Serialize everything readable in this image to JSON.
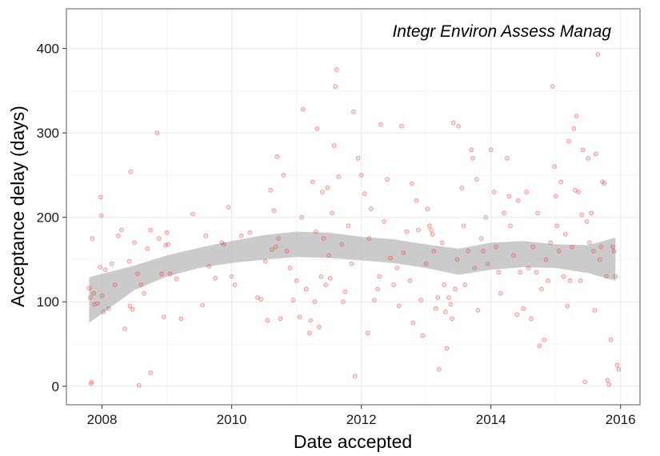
{
  "chart_data": {
    "type": "scatter",
    "title": "Integr Environ Assess Manag",
    "xlabel": "Date accepted",
    "ylabel": "Acceptance delay (days)",
    "xlim": [
      2007.45,
      2016.3
    ],
    "ylim": [
      -22,
      447
    ],
    "x_ticks": [
      2008,
      2010,
      2012,
      2014,
      2016
    ],
    "x_tick_labels": [
      "2008",
      "2010",
      "2012",
      "2014",
      "2016"
    ],
    "y_ticks": [
      0,
      100,
      200,
      300,
      400
    ],
    "y_tick_labels": [
      "0",
      "100",
      "200",
      "300",
      "400"
    ],
    "grid": true,
    "point_color": "#e8473f",
    "band_color": "#bdbdbd",
    "points": [
      [
        2007.8,
        116
      ],
      [
        2007.82,
        105
      ],
      [
        2007.83,
        3
      ],
      [
        2007.84,
        5
      ],
      [
        2007.85,
        175
      ],
      [
        2007.87,
        110
      ],
      [
        2007.88,
        97
      ],
      [
        2007.93,
        98
      ],
      [
        2007.97,
        141
      ],
      [
        2007.98,
        224
      ],
      [
        2007.99,
        202
      ],
      [
        2008.0,
        107
      ],
      [
        2008.02,
        88
      ],
      [
        2008.05,
        138
      ],
      [
        2008.1,
        92
      ],
      [
        2008.15,
        145
      ],
      [
        2008.2,
        120
      ],
      [
        2008.25,
        178
      ],
      [
        2008.3,
        185
      ],
      [
        2008.35,
        68
      ],
      [
        2008.42,
        148
      ],
      [
        2008.43,
        95
      ],
      [
        2008.44,
        254
      ],
      [
        2008.47,
        91
      ],
      [
        2008.5,
        170
      ],
      [
        2008.55,
        133
      ],
      [
        2008.57,
        1
      ],
      [
        2008.6,
        120
      ],
      [
        2008.65,
        110
      ],
      [
        2008.7,
        163
      ],
      [
        2008.75,
        185
      ],
      [
        2008.75,
        16
      ],
      [
        2008.85,
        300
      ],
      [
        2008.88,
        175
      ],
      [
        2008.92,
        133
      ],
      [
        2008.95,
        82
      ],
      [
        2008.98,
        167
      ],
      [
        2009.0,
        182
      ],
      [
        2009.02,
        168
      ],
      [
        2009.05,
        133
      ],
      [
        2009.15,
        127
      ],
      [
        2009.22,
        80
      ],
      [
        2009.4,
        204
      ],
      [
        2009.55,
        96
      ],
      [
        2009.6,
        178
      ],
      [
        2009.65,
        142
      ],
      [
        2009.75,
        128
      ],
      [
        2009.85,
        170
      ],
      [
        2009.88,
        168
      ],
      [
        2009.95,
        212
      ],
      [
        2010.0,
        130
      ],
      [
        2010.05,
        120
      ],
      [
        2010.15,
        178
      ],
      [
        2010.28,
        182
      ],
      [
        2010.4,
        105
      ],
      [
        2010.45,
        103
      ],
      [
        2010.52,
        148
      ],
      [
        2010.55,
        78
      ],
      [
        2010.6,
        232
      ],
      [
        2010.62,
        162
      ],
      [
        2010.65,
        208
      ],
      [
        2010.68,
        165
      ],
      [
        2010.7,
        272
      ],
      [
        2010.72,
        175
      ],
      [
        2010.75,
        80
      ],
      [
        2010.8,
        250
      ],
      [
        2010.85,
        160
      ],
      [
        2010.9,
        140
      ],
      [
        2010.95,
        102
      ],
      [
        2011.0,
        125
      ],
      [
        2011.05,
        82
      ],
      [
        2011.08,
        200
      ],
      [
        2011.1,
        328
      ],
      [
        2011.15,
        115
      ],
      [
        2011.2,
        63
      ],
      [
        2011.22,
        78
      ],
      [
        2011.25,
        242
      ],
      [
        2011.28,
        100
      ],
      [
        2011.3,
        183
      ],
      [
        2011.32,
        305
      ],
      [
        2011.35,
        70
      ],
      [
        2011.38,
        130
      ],
      [
        2011.4,
        230
      ],
      [
        2011.42,
        175
      ],
      [
        2011.45,
        120
      ],
      [
        2011.48,
        235
      ],
      [
        2011.5,
        155
      ],
      [
        2011.52,
        128
      ],
      [
        2011.55,
        205
      ],
      [
        2011.58,
        285
      ],
      [
        2011.6,
        355
      ],
      [
        2011.62,
        375
      ],
      [
        2011.65,
        248
      ],
      [
        2011.7,
        168
      ],
      [
        2011.72,
        100
      ],
      [
        2011.75,
        112
      ],
      [
        2011.8,
        190
      ],
      [
        2011.85,
        145
      ],
      [
        2011.88,
        325
      ],
      [
        2011.9,
        12
      ],
      [
        2011.95,
        270
      ],
      [
        2012.0,
        250
      ],
      [
        2012.05,
        228
      ],
      [
        2012.1,
        63
      ],
      [
        2012.12,
        175
      ],
      [
        2012.15,
        210
      ],
      [
        2012.2,
        102
      ],
      [
        2012.25,
        115
      ],
      [
        2012.28,
        130
      ],
      [
        2012.3,
        310
      ],
      [
        2012.35,
        195
      ],
      [
        2012.4,
        245
      ],
      [
        2012.45,
        152
      ],
      [
        2012.5,
        120
      ],
      [
        2012.55,
        140
      ],
      [
        2012.58,
        95
      ],
      [
        2012.62,
        308
      ],
      [
        2012.65,
        158
      ],
      [
        2012.7,
        183
      ],
      [
        2012.75,
        125
      ],
      [
        2012.78,
        240
      ],
      [
        2012.8,
        75
      ],
      [
        2012.85,
        220
      ],
      [
        2012.88,
        185
      ],
      [
        2012.92,
        102
      ],
      [
        2012.95,
        60
      ],
      [
        2013.0,
        145
      ],
      [
        2013.02,
        210
      ],
      [
        2013.05,
        190
      ],
      [
        2013.08,
        185
      ],
      [
        2013.1,
        180
      ],
      [
        2013.12,
        160
      ],
      [
        2013.15,
        92
      ],
      [
        2013.18,
        105
      ],
      [
        2013.2,
        20
      ],
      [
        2013.25,
        170
      ],
      [
        2013.28,
        120
      ],
      [
        2013.3,
        88
      ],
      [
        2013.32,
        45
      ],
      [
        2013.35,
        105
      ],
      [
        2013.38,
        97
      ],
      [
        2013.4,
        80
      ],
      [
        2013.42,
        312
      ],
      [
        2013.45,
        115
      ],
      [
        2013.48,
        150
      ],
      [
        2013.5,
        308
      ],
      [
        2013.55,
        235
      ],
      [
        2013.58,
        190
      ],
      [
        2013.6,
        120
      ],
      [
        2013.65,
        160
      ],
      [
        2013.7,
        280
      ],
      [
        2013.72,
        270
      ],
      [
        2013.75,
        140
      ],
      [
        2013.78,
        245
      ],
      [
        2013.8,
        90
      ],
      [
        2013.85,
        175
      ],
      [
        2013.88,
        160
      ],
      [
        2013.92,
        200
      ],
      [
        2013.95,
        145
      ],
      [
        2014.0,
        280
      ],
      [
        2014.05,
        230
      ],
      [
        2014.08,
        165
      ],
      [
        2014.12,
        135
      ],
      [
        2014.15,
        110
      ],
      [
        2014.2,
        205
      ],
      [
        2014.25,
        270
      ],
      [
        2014.28,
        225
      ],
      [
        2014.3,
        190
      ],
      [
        2014.35,
        155
      ],
      [
        2014.4,
        85
      ],
      [
        2014.42,
        220
      ],
      [
        2014.45,
        135
      ],
      [
        2014.5,
        92
      ],
      [
        2014.55,
        230
      ],
      [
        2014.58,
        140
      ],
      [
        2014.62,
        80
      ],
      [
        2014.65,
        165
      ],
      [
        2014.7,
        135
      ],
      [
        2014.72,
        205
      ],
      [
        2014.75,
        48
      ],
      [
        2014.78,
        115
      ],
      [
        2014.82,
        55
      ],
      [
        2014.85,
        150
      ],
      [
        2014.88,
        125
      ],
      [
        2014.92,
        170
      ],
      [
        2014.95,
        355
      ],
      [
        2014.98,
        260
      ],
      [
        2015.0,
        225
      ],
      [
        2015.02,
        190
      ],
      [
        2015.05,
        160
      ],
      [
        2015.08,
        242
      ],
      [
        2015.12,
        130
      ],
      [
        2015.15,
        180
      ],
      [
        2015.18,
        95
      ],
      [
        2015.2,
        290
      ],
      [
        2015.22,
        125
      ],
      [
        2015.25,
        165
      ],
      [
        2015.28,
        305
      ],
      [
        2015.3,
        232
      ],
      [
        2015.32,
        320
      ],
      [
        2015.35,
        230
      ],
      [
        2015.38,
        125
      ],
      [
        2015.4,
        203
      ],
      [
        2015.42,
        280
      ],
      [
        2015.45,
        5
      ],
      [
        2015.48,
        195
      ],
      [
        2015.5,
        270
      ],
      [
        2015.52,
        170
      ],
      [
        2015.55,
        205
      ],
      [
        2015.58,
        160
      ],
      [
        2015.6,
        90
      ],
      [
        2015.62,
        275
      ],
      [
        2015.65,
        393
      ],
      [
        2015.68,
        150
      ],
      [
        2015.7,
        165
      ],
      [
        2015.72,
        242
      ],
      [
        2015.75,
        240
      ],
      [
        2015.78,
        130
      ],
      [
        2015.8,
        7
      ],
      [
        2015.82,
        2
      ],
      [
        2015.85,
        55
      ],
      [
        2015.88,
        165
      ],
      [
        2015.9,
        160
      ],
      [
        2015.92,
        130
      ],
      [
        2015.95,
        25
      ],
      [
        2015.97,
        20
      ]
    ],
    "smooth_fit": {
      "x": [
        2007.8,
        2008.5,
        2009.0,
        2009.5,
        2010.0,
        2010.5,
        2011.0,
        2011.5,
        2012.0,
        2012.5,
        2013.0,
        2013.5,
        2014.0,
        2014.5,
        2015.0,
        2015.5,
        2015.92
      ],
      "upper": [
        129,
        143,
        155,
        164,
        172,
        179,
        183,
        182,
        177,
        174,
        168,
        163,
        170,
        172,
        168,
        167,
        176
      ],
      "lower": [
        75,
        114,
        130,
        140,
        146,
        150,
        153,
        152,
        149,
        146,
        140,
        132,
        138,
        141,
        140,
        134,
        125
      ]
    }
  }
}
